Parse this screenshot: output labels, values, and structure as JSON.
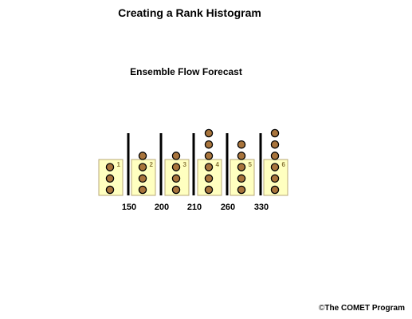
{
  "title": "Creating a Rank Histogram",
  "subtitle": "Ensemble Flow Forecast",
  "copyright": {
    "symbol": "©",
    "text": "The COMET Program"
  },
  "colors": {
    "bin_fill": "#ffffc0",
    "bin_border": "#b8a878",
    "ball_fill": "#a8743c",
    "ball_stroke": "#000000",
    "divider": "#000000",
    "bin_label": "#8c7a3c"
  },
  "chart_data": {
    "type": "bar",
    "ensemble_values": [
      "150",
      "200",
      "210",
      "260",
      "330"
    ],
    "bins": [
      {
        "rank": "1",
        "count": 3
      },
      {
        "rank": "2",
        "count": 4
      },
      {
        "rank": "3",
        "count": 4
      },
      {
        "rank": "4",
        "count": 6
      },
      {
        "rank": "5",
        "count": 5
      },
      {
        "rank": "6",
        "count": 6
      }
    ]
  }
}
